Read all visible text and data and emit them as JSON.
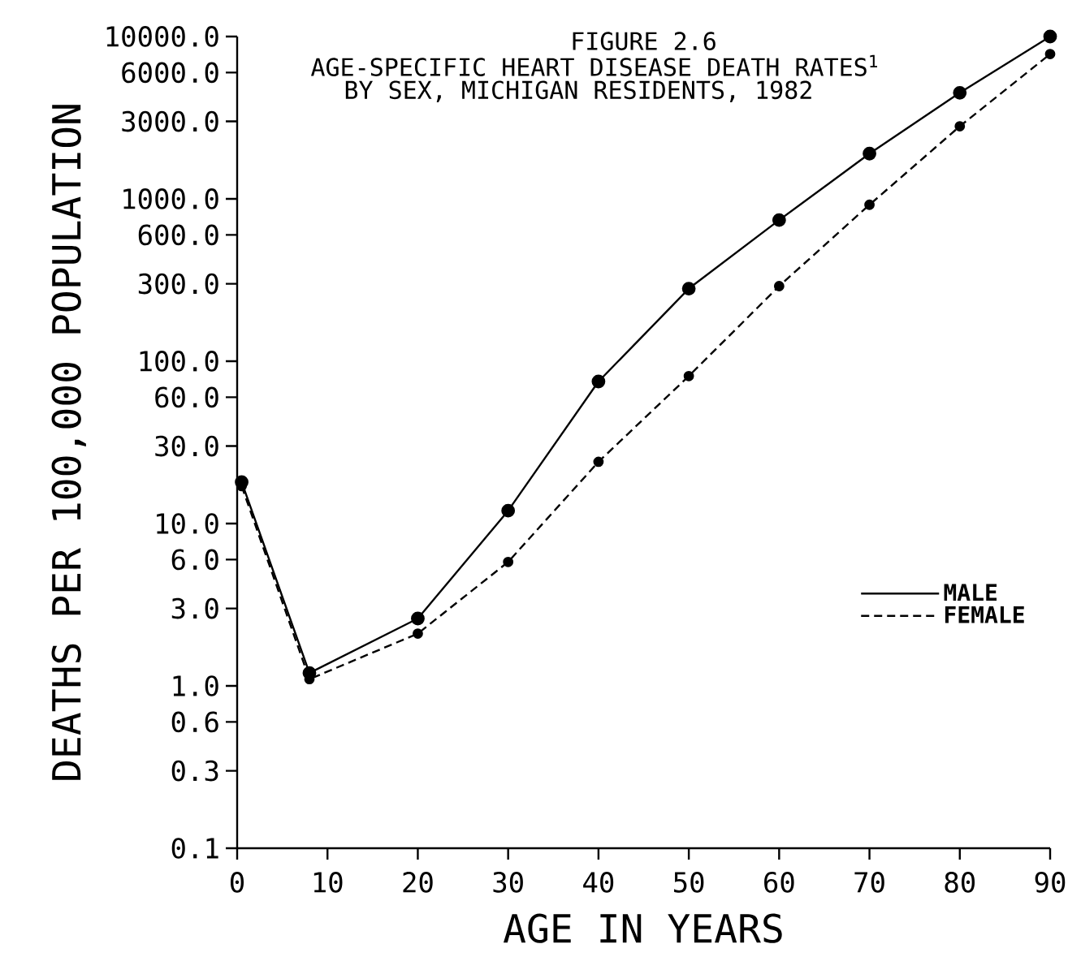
{
  "chart_data": {
    "type": "line",
    "title": "FIGURE 2.6",
    "subtitle": "AGE-SPECIFIC HEART DISEASE DEATH RATES$^{1}$",
    "annotations": [
      "BY SEX, MICHIGAN RESIDENTS, 1982"
    ],
    "xlabel": "AGE IN YEARS",
    "ylabel": "DEATHS PER 100,000 POPULATION",
    "series": [
      {
        "name": "MALE",
        "color": "#000000",
        "line_style": "solid",
        "x": [
          0.5,
          8,
          20,
          30,
          40,
          50,
          60,
          70,
          80,
          90
        ],
        "values": [
          18,
          1.2,
          2.6,
          12,
          75,
          280,
          740,
          1900,
          4500,
          10000
        ]
      },
      {
        "name": "FEMALE",
        "color": "#000000",
        "line_style": "dashed",
        "x": [
          0.5,
          8,
          20,
          30,
          40,
          50,
          60,
          70,
          80,
          90
        ],
        "values": [
          17,
          1.1,
          2.1,
          5.8,
          24,
          81,
          290,
          920,
          2800,
          7800
        ]
      }
    ],
    "log": "y",
    "xlim": [
      0,
      90
    ],
    "xticks": [
      0,
      10,
      20,
      30,
      40,
      50,
      60,
      70,
      80,
      90
    ],
    "ylim": [
      0.1,
      10000
    ],
    "yticks": [
      {
        "value": 10000,
        "label": "10000.0"
      },
      {
        "value": 6000,
        "label": "6000.0"
      },
      {
        "value": 3000,
        "label": "3000.0"
      },
      {
        "value": 1000,
        "label": "1000.0"
      },
      {
        "value": 600,
        "label": "600.0"
      },
      {
        "value": 300,
        "label": "300.0"
      },
      {
        "value": 100,
        "label": "100.0"
      },
      {
        "value": 60,
        "label": "60.0"
      },
      {
        "value": 30,
        "label": "30.0"
      },
      {
        "value": 10,
        "label": "10.0"
      },
      {
        "value": 6,
        "label": "6.0"
      },
      {
        "value": 3,
        "label": "3.0"
      },
      {
        "value": 1,
        "label": "1.0"
      },
      {
        "value": 0.6,
        "label": "0.6"
      },
      {
        "value": 0.3,
        "label": "0.3"
      },
      {
        "value": 0.1,
        "label": "0.1"
      }
    ],
    "grid": false,
    "legend": "right",
    "marker": "circle"
  }
}
